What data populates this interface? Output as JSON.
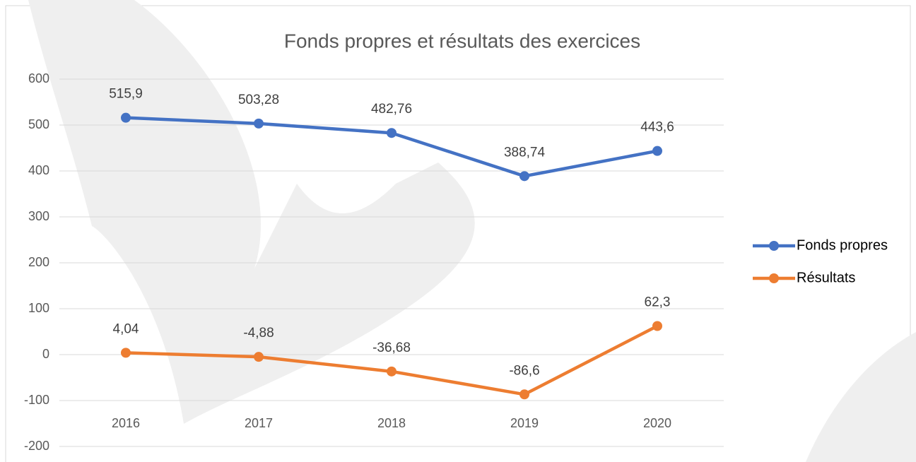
{
  "chart_data": {
    "type": "line",
    "title": "Fonds propres et résultats des exercices",
    "categories": [
      "2016",
      "2017",
      "2018",
      "2019",
      "2020"
    ],
    "series": [
      {
        "name": "Fonds propres",
        "color": "#4472c4",
        "values": [
          515.9,
          503.28,
          482.76,
          388.74,
          443.6
        ],
        "value_labels": [
          "515,9",
          "503,28",
          "482,76",
          "388,74",
          "443,6"
        ]
      },
      {
        "name": "Résultats",
        "color": "#ed7d31",
        "values": [
          4.04,
          -4.88,
          -36.68,
          -86.6,
          62.3
        ],
        "value_labels": [
          "4,04",
          "-4,88",
          "-36,68",
          "-86,6",
          "62,3"
        ]
      }
    ],
    "ylim": [
      -200,
      600
    ],
    "yticks": [
      -200,
      -100,
      0,
      100,
      200,
      300,
      400,
      500,
      600
    ],
    "grid": true,
    "legend": "right"
  }
}
